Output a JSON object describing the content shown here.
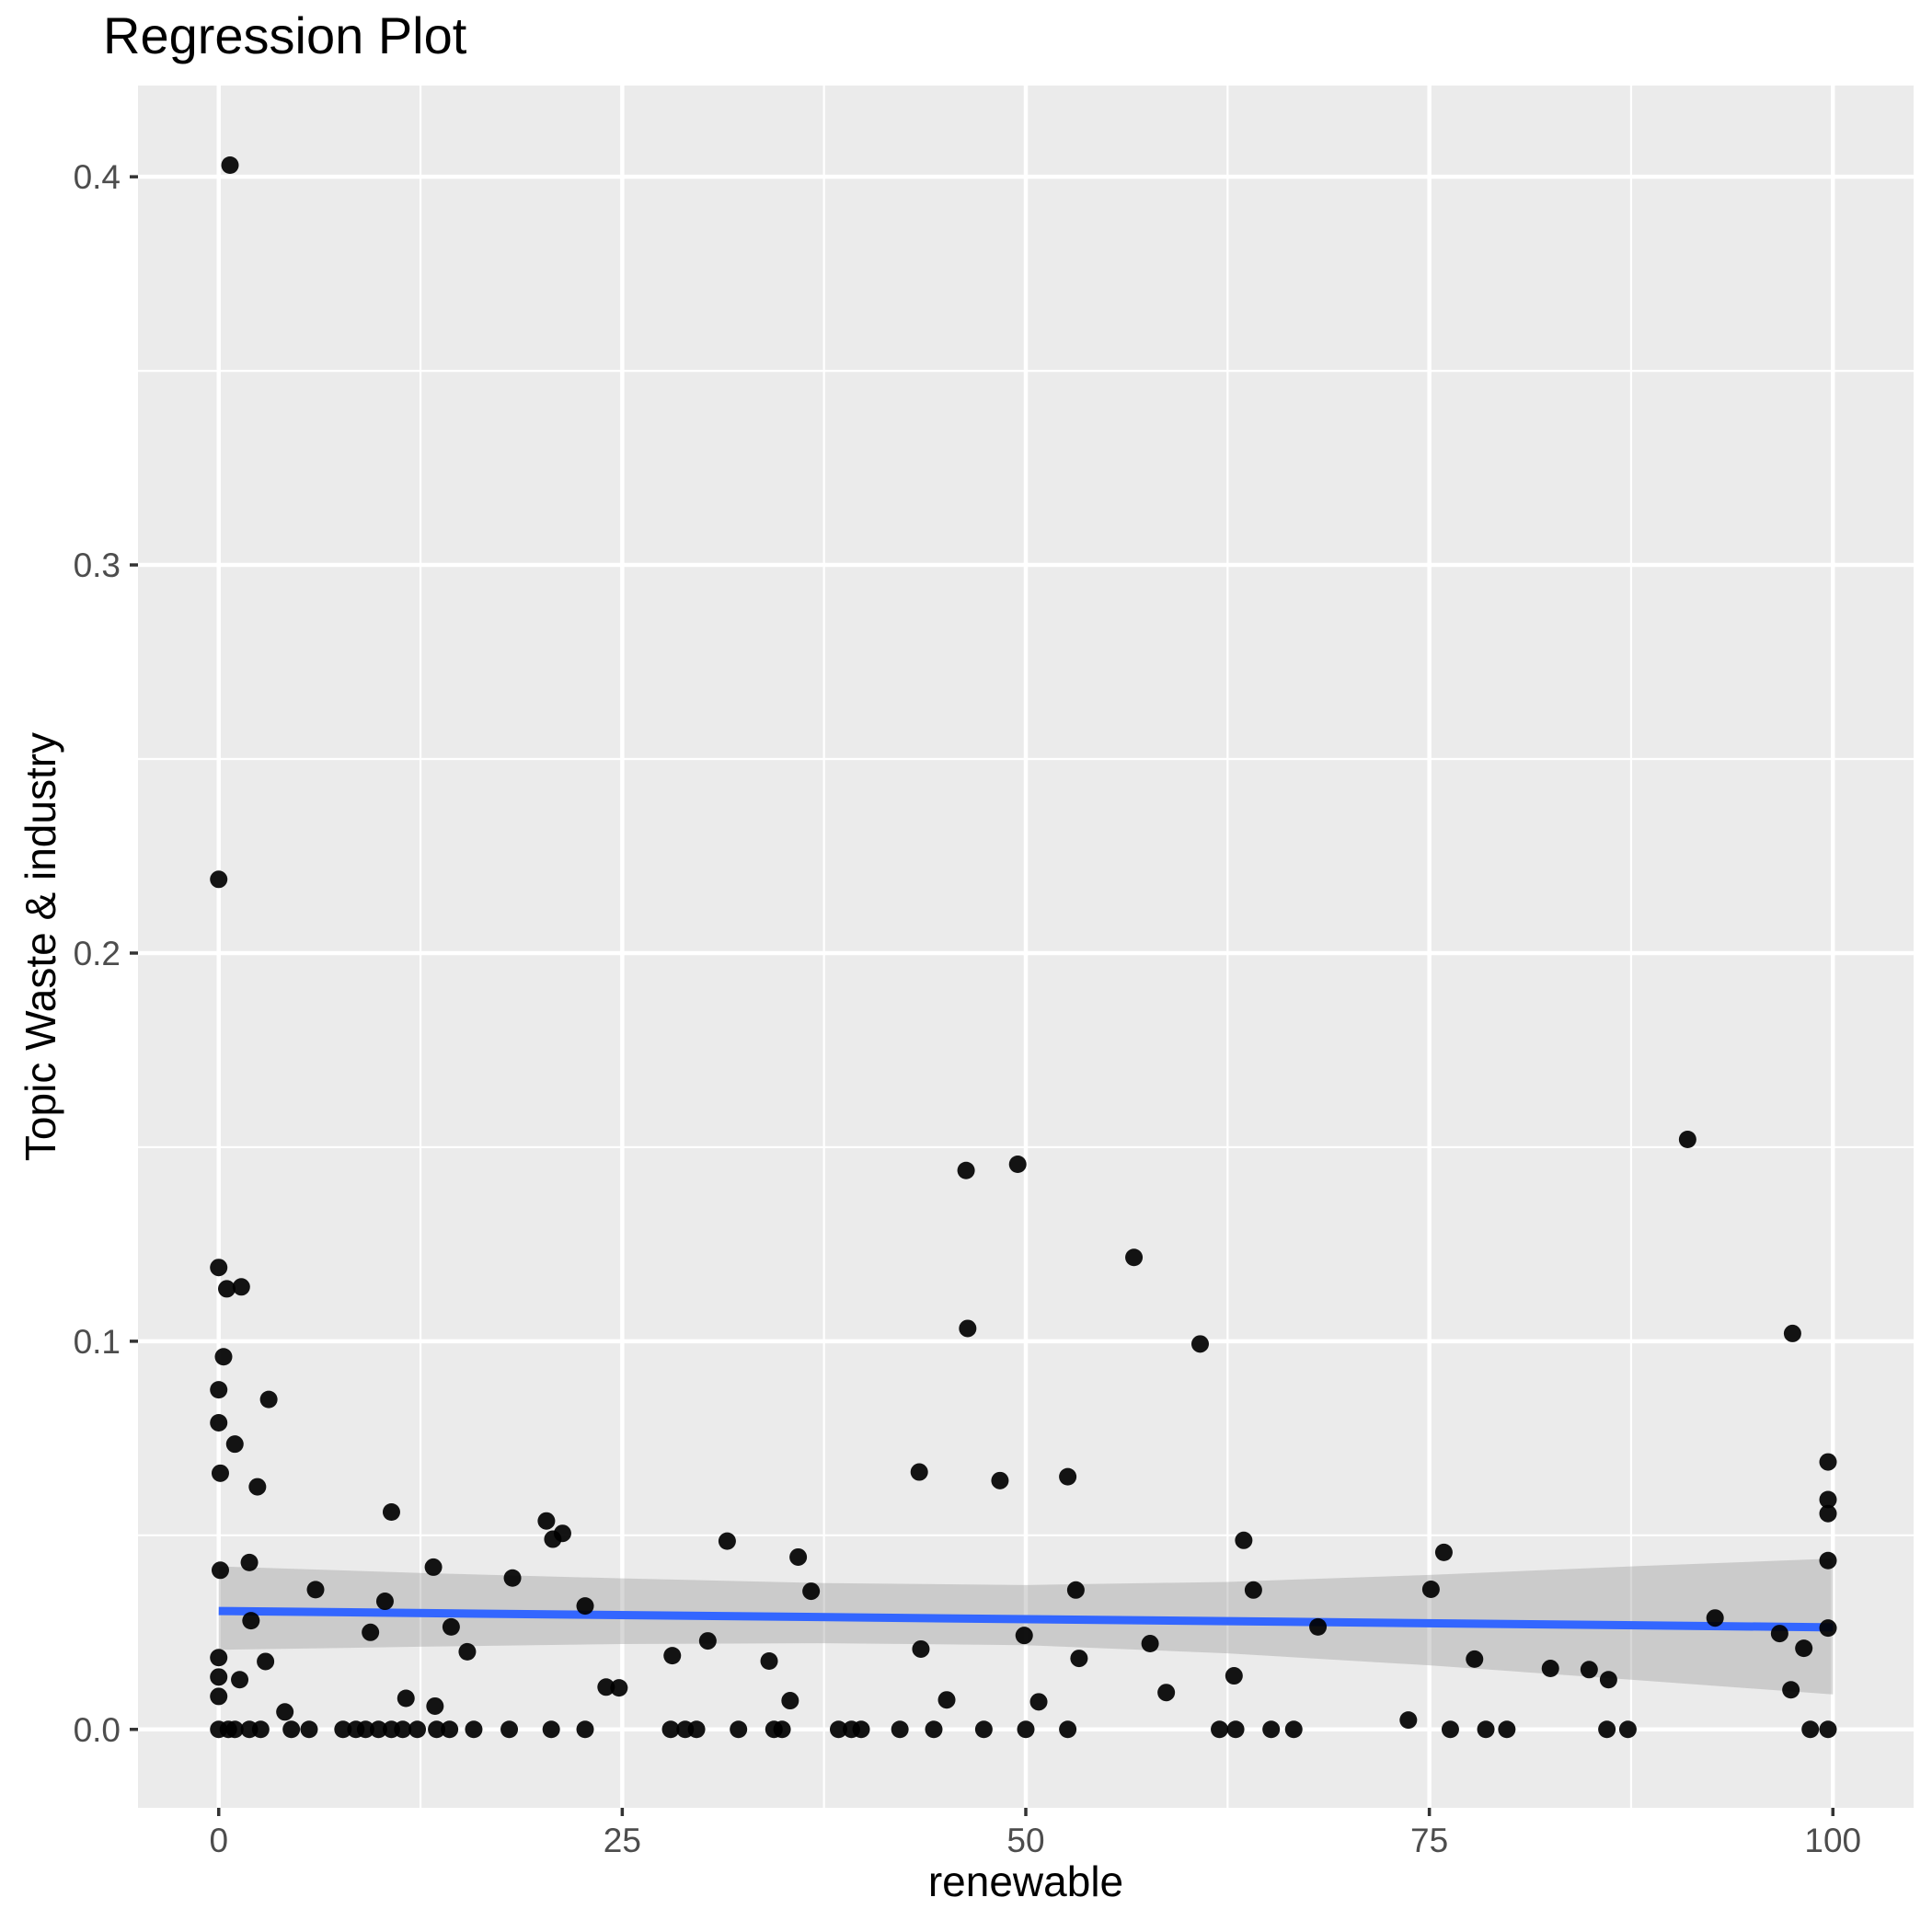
{
  "title": "Regression Plot",
  "chart_data": {
    "type": "scatter",
    "title": "Regression Plot",
    "xlabel": "renewable",
    "ylabel": "Topic Waste & industry",
    "legend": false,
    "grid": true,
    "xlim": [
      -5,
      105
    ],
    "ylim": [
      -0.0202,
      0.4235
    ],
    "x_ticks": {
      "values": [
        0,
        25,
        50,
        75,
        100
      ],
      "labels": [
        "0",
        "25",
        "50",
        "75",
        "100"
      ]
    },
    "y_ticks": {
      "values": [
        0,
        0.1,
        0.2,
        0.3,
        0.4
      ],
      "labels": [
        "0.0",
        "0.1",
        "0.2",
        "0.3",
        "0.4"
      ]
    },
    "x_minor": [
      12.5,
      37.5,
      62.5,
      87.5
    ],
    "y_minor": [
      0.05,
      0.15,
      0.25,
      0.35
    ],
    "colors": {
      "panel_background": "#EBEBEB",
      "gridline": "#FFFFFF",
      "point": "#000000",
      "regression_line": "#3366FF",
      "confidence_band": "#999999",
      "axis_text": "#4d4d4d",
      "tick_mark": "#333333"
    },
    "regression_line": {
      "x": [
        0,
        100
      ],
      "y": [
        0.0305,
        0.0263
      ]
    },
    "confidence_band": {
      "x": [
        0,
        12.5,
        25,
        37.5,
        50,
        62.5,
        75,
        87.5,
        100
      ],
      "upper": [
        0.042,
        0.0403,
        0.0389,
        0.0377,
        0.0372,
        0.038,
        0.0398,
        0.042,
        0.044
      ],
      "lower": [
        0.0205,
        0.0213,
        0.022,
        0.0222,
        0.0217,
        0.0196,
        0.0165,
        0.0128,
        0.009
      ]
    },
    "points": [
      [
        0.7,
        0.403
      ],
      [
        0,
        0.219
      ],
      [
        0,
        0.119
      ],
      [
        0.5,
        0.1135
      ],
      [
        1.4,
        0.114
      ],
      [
        0.3,
        0.096
      ],
      [
        0,
        0.0875
      ],
      [
        3.1,
        0.085
      ],
      [
        0,
        0.079
      ],
      [
        1,
        0.0735
      ],
      [
        0.1,
        0.066
      ],
      [
        2.4,
        0.0625
      ],
      [
        10.7,
        0.056
      ],
      [
        1.9,
        0.043
      ],
      [
        0.1,
        0.041
      ],
      [
        6,
        0.036
      ],
      [
        10.3,
        0.033
      ],
      [
        2,
        0.028
      ],
      [
        9.4,
        0.025
      ],
      [
        0,
        0.0185
      ],
      [
        2.9,
        0.0175
      ],
      [
        0,
        0.0135
      ],
      [
        1.3,
        0.0128
      ],
      [
        0,
        0.0085
      ],
      [
        11.6,
        0.008
      ],
      [
        13.4,
        0.006
      ],
      [
        4.1,
        0.0045
      ],
      [
        13.3,
        0.0418
      ],
      [
        14.4,
        0.0264
      ],
      [
        15.4,
        0.02
      ],
      [
        18.2,
        0.039
      ],
      [
        20.3,
        0.0537
      ],
      [
        20.7,
        0.049
      ],
      [
        21.3,
        0.0505
      ],
      [
        22.7,
        0.0318
      ],
      [
        24,
        0.0109
      ],
      [
        24.8,
        0.0107
      ],
      [
        28.1,
        0.019
      ],
      [
        30.3,
        0.0228
      ],
      [
        31.5,
        0.0485
      ],
      [
        34.1,
        0.0176
      ],
      [
        35.4,
        0.0074
      ],
      [
        35.9,
        0.0444
      ],
      [
        36.7,
        0.0356
      ],
      [
        43.4,
        0.0663
      ],
      [
        48.4,
        0.0641
      ],
      [
        52.6,
        0.0651
      ],
      [
        46.3,
        0.144
      ],
      [
        49.5,
        0.1456
      ],
      [
        56.7,
        0.1216
      ],
      [
        46.4,
        0.1033
      ],
      [
        60.8,
        0.0993
      ],
      [
        53.1,
        0.0359
      ],
      [
        49.9,
        0.0242
      ],
      [
        43.5,
        0.0207
      ],
      [
        53.3,
        0.0183
      ],
      [
        57.7,
        0.0221
      ],
      [
        63.5,
        0.0487
      ],
      [
        64.1,
        0.0359
      ],
      [
        62.9,
        0.0138
      ],
      [
        58.7,
        0.0095
      ],
      [
        45.1,
        0.0076
      ],
      [
        50.8,
        0.0071
      ],
      [
        68.1,
        0.0264
      ],
      [
        73.7,
        0.0024
      ],
      [
        75.1,
        0.0361
      ],
      [
        75.9,
        0.0456
      ],
      [
        77.8,
        0.0181
      ],
      [
        82.5,
        0.0157
      ],
      [
        84.9,
        0.0154
      ],
      [
        86.1,
        0.0128
      ],
      [
        91,
        0.152
      ],
      [
        92.7,
        0.0287
      ],
      [
        96.7,
        0.0247
      ],
      [
        97.4,
        0.0102
      ],
      [
        97.5,
        0.102
      ],
      [
        98.2,
        0.0209
      ],
      [
        99.7,
        0.0689
      ],
      [
        99.7,
        0.0592
      ],
      [
        99.7,
        0.0556
      ],
      [
        99.7,
        0.0435
      ],
      [
        99.7,
        0.0261
      ],
      [
        0,
        0
      ],
      [
        0.6,
        0
      ],
      [
        1,
        0
      ],
      [
        1.9,
        0
      ],
      [
        2.6,
        0
      ],
      [
        4.5,
        0
      ],
      [
        5.6,
        0
      ],
      [
        7.7,
        0
      ],
      [
        8.5,
        0
      ],
      [
        9.1,
        0
      ],
      [
        9.9,
        0
      ],
      [
        10.7,
        0
      ],
      [
        11.4,
        0
      ],
      [
        12.3,
        0
      ],
      [
        13.5,
        0
      ],
      [
        14.3,
        0
      ],
      [
        15.8,
        0
      ],
      [
        18,
        0
      ],
      [
        20.6,
        0
      ],
      [
        22.7,
        0
      ],
      [
        28,
        0
      ],
      [
        28.9,
        0
      ],
      [
        29.6,
        0
      ],
      [
        32.2,
        0
      ],
      [
        34.4,
        0
      ],
      [
        34.9,
        0
      ],
      [
        38.4,
        0
      ],
      [
        39.2,
        0
      ],
      [
        39.8,
        0
      ],
      [
        42.2,
        0
      ],
      [
        44.3,
        0
      ],
      [
        47.4,
        0
      ],
      [
        50,
        0
      ],
      [
        52.6,
        0
      ],
      [
        62,
        0
      ],
      [
        63,
        0
      ],
      [
        65.2,
        0
      ],
      [
        66.6,
        0
      ],
      [
        76.3,
        0
      ],
      [
        78.5,
        0
      ],
      [
        79.8,
        0
      ],
      [
        86,
        0
      ],
      [
        87.3,
        0
      ],
      [
        98.6,
        0
      ],
      [
        99.7,
        0
      ]
    ]
  }
}
